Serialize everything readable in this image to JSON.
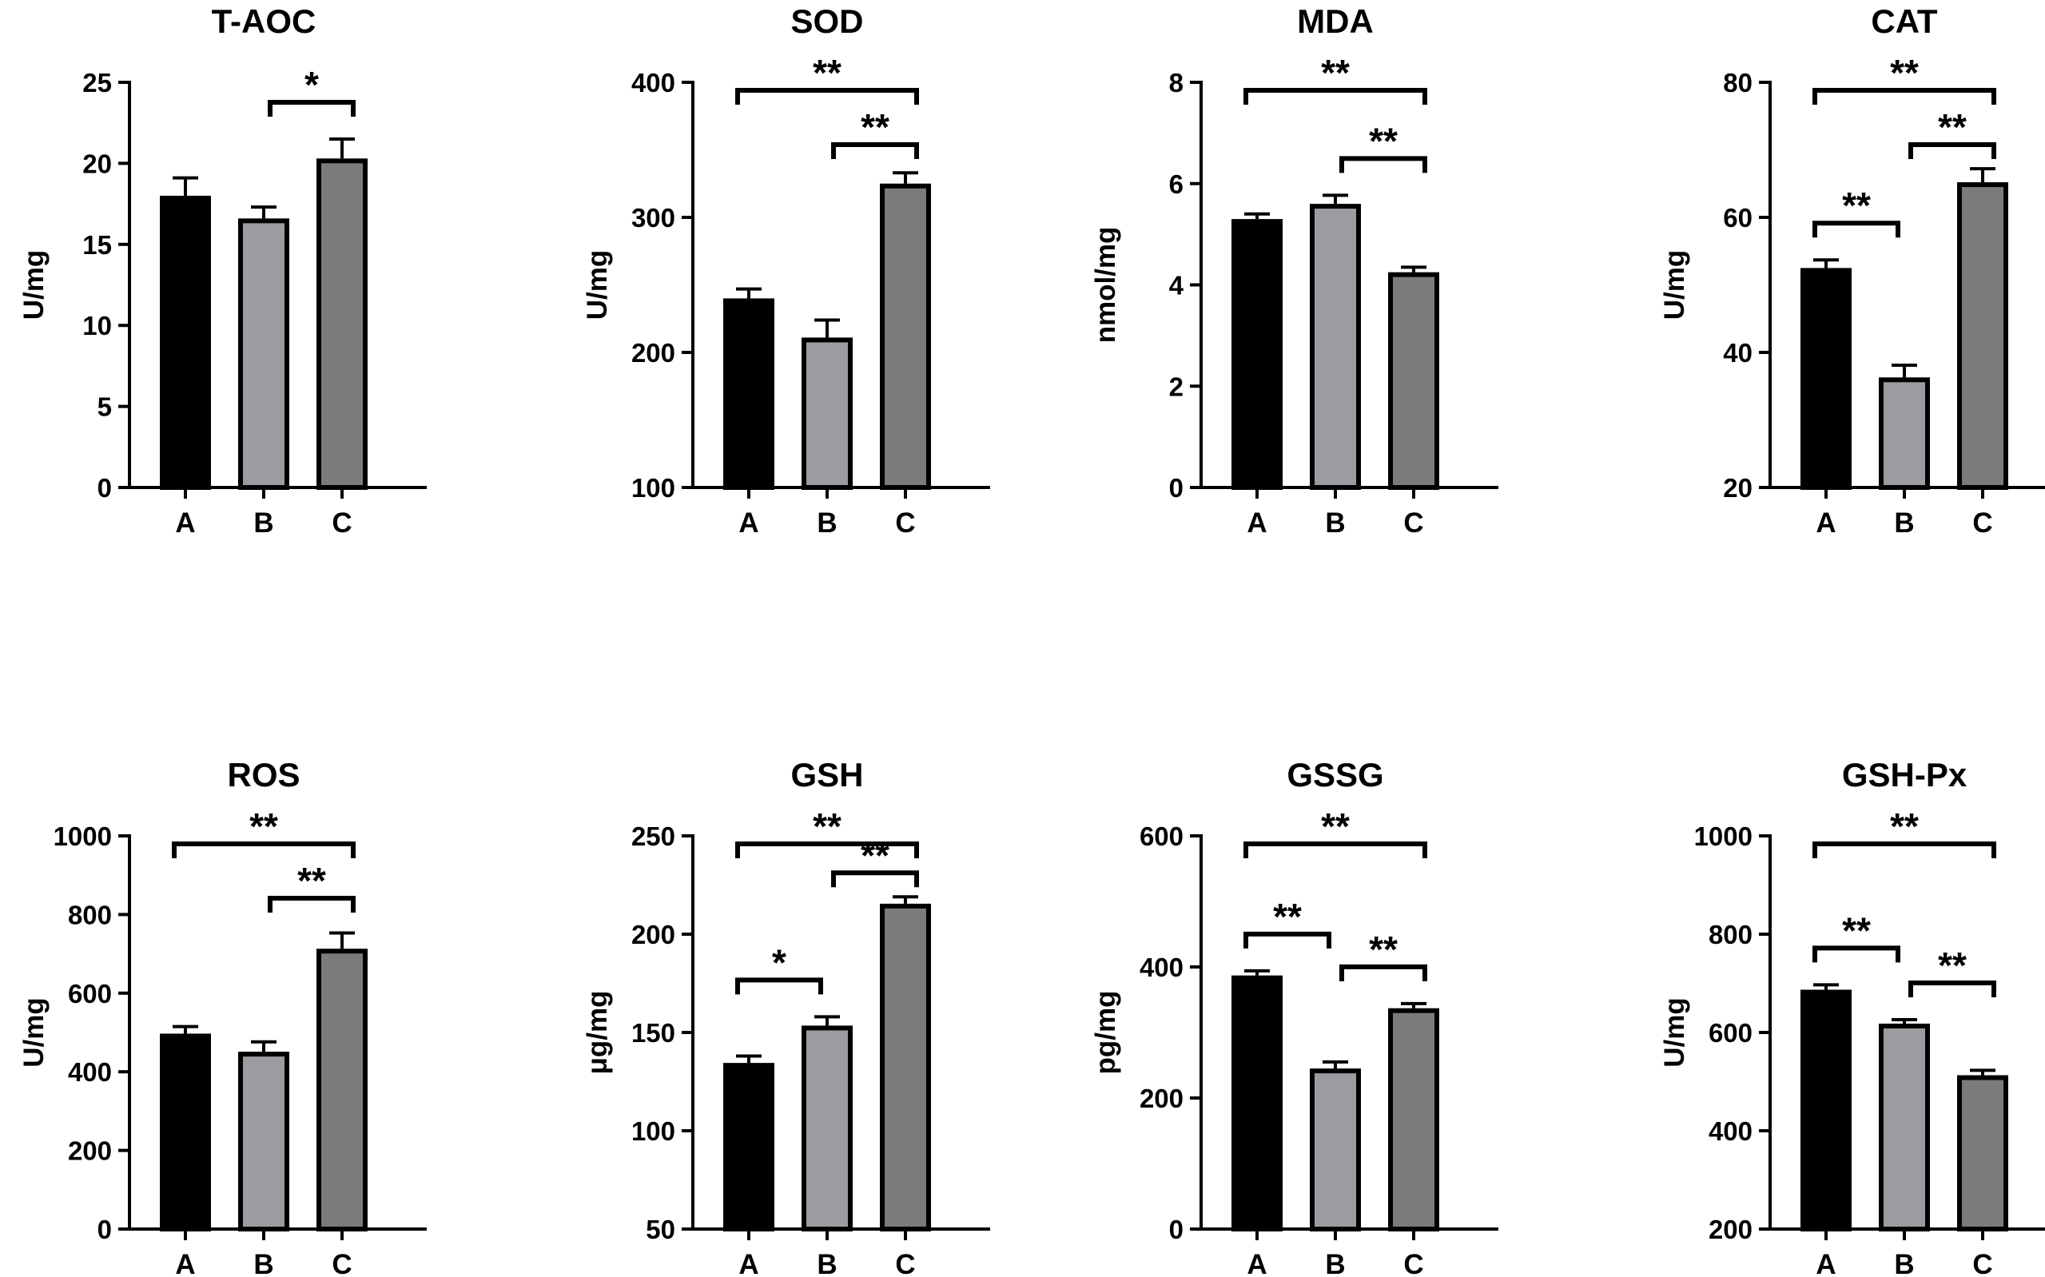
{
  "colors": {
    "A": "#000000",
    "B": "#9c9ca0",
    "C": "#7b7b7b",
    "axis": "#000000"
  },
  "chart_data": [
    {
      "type": "bar",
      "title": "T-AOC",
      "ylabel": "U/mg",
      "categories": [
        "A",
        "B",
        "C"
      ],
      "values": [
        18.0,
        16.6,
        20.3
      ],
      "errors": [
        1.1,
        0.7,
        1.2
      ],
      "ylim": [
        0,
        25
      ],
      "yticks": [
        0,
        5,
        10,
        15,
        20,
        25
      ],
      "significance": [
        {
          "from": "B",
          "to": "C",
          "label": "*"
        }
      ]
    },
    {
      "type": "bar",
      "title": "SOD",
      "ylabel": "U/mg",
      "categories": [
        "A",
        "B",
        "C"
      ],
      "values": [
        240,
        211,
        325
      ],
      "errors": [
        7,
        13,
        8
      ],
      "ylim": [
        100,
        400
      ],
      "yticks": [
        100,
        200,
        300,
        400
      ],
      "significance": [
        {
          "from": "A",
          "to": "C",
          "label": "**"
        },
        {
          "from": "B",
          "to": "C",
          "label": "**"
        }
      ]
    },
    {
      "type": "bar",
      "title": "MDA",
      "ylabel": "nmol/mg",
      "categories": [
        "A",
        "B",
        "C"
      ],
      "values": [
        5.3,
        5.6,
        4.25
      ],
      "errors": [
        0.1,
        0.17,
        0.1
      ],
      "ylim": [
        0,
        8
      ],
      "yticks": [
        0,
        2,
        4,
        6,
        8
      ],
      "significance": [
        {
          "from": "A",
          "to": "C",
          "label": "**"
        },
        {
          "from": "B",
          "to": "C",
          "label": "**"
        }
      ]
    },
    {
      "type": "bar",
      "title": "CAT",
      "ylabel": "U/mg",
      "categories": [
        "A",
        "B",
        "C"
      ],
      "values": [
        52.5,
        36.3,
        65.2
      ],
      "errors": [
        1.2,
        1.8,
        2.0
      ],
      "ylim": [
        20,
        80
      ],
      "yticks": [
        20,
        40,
        60,
        80
      ],
      "significance": [
        {
          "from": "A",
          "to": "C",
          "label": "**"
        },
        {
          "from": "B",
          "to": "C",
          "label": "**"
        },
        {
          "from": "A",
          "to": "B",
          "label": "**"
        }
      ]
    },
    {
      "type": "bar",
      "title": "ROS",
      "ylabel": "U/mg",
      "categories": [
        "A",
        "B",
        "C"
      ],
      "values": [
        497,
        451,
        713
      ],
      "errors": [
        18,
        25,
        40
      ],
      "ylim": [
        0,
        1000
      ],
      "yticks": [
        0,
        200,
        400,
        600,
        800,
        1000
      ],
      "significance": [
        {
          "from": "A",
          "to": "C",
          "label": "**"
        },
        {
          "from": "B",
          "to": "C",
          "label": "**"
        }
      ]
    },
    {
      "type": "bar",
      "title": "GSH",
      "ylabel": "μg/mg",
      "categories": [
        "A",
        "B",
        "C"
      ],
      "values": [
        134.5,
        153.5,
        215.5
      ],
      "errors": [
        3.5,
        4.5,
        3.5
      ],
      "ylim": [
        50,
        250
      ],
      "yticks": [
        50,
        100,
        150,
        200,
        250
      ],
      "significance": [
        {
          "from": "A",
          "to": "C",
          "label": "**"
        },
        {
          "from": "B",
          "to": "C",
          "label": "**"
        },
        {
          "from": "A",
          "to": "B",
          "label": "*"
        }
      ]
    },
    {
      "type": "bar",
      "title": "GSSG",
      "ylabel": "pg/mg",
      "categories": [
        "A",
        "B",
        "C"
      ],
      "values": [
        387,
        245,
        337
      ],
      "errors": [
        7,
        10,
        7
      ],
      "ylim": [
        0,
        600
      ],
      "yticks": [
        0,
        200,
        400,
        600
      ],
      "significance": [
        {
          "from": "A",
          "to": "C",
          "label": "**"
        },
        {
          "from": "A",
          "to": "B",
          "label": "**"
        },
        {
          "from": "B",
          "to": "C",
          "label": "**"
        }
      ]
    },
    {
      "type": "bar",
      "title": "GSH-Px",
      "ylabel": "U/mg",
      "categories": [
        "A",
        "B",
        "C"
      ],
      "values": [
        687,
        618,
        513
      ],
      "errors": [
        10,
        8,
        10
      ],
      "ylim": [
        200,
        1000
      ],
      "yticks": [
        200,
        400,
        600,
        800,
        1000
      ],
      "significance": [
        {
          "from": "A",
          "to": "C",
          "label": "**"
        },
        {
          "from": "A",
          "to": "B",
          "label": "**"
        },
        {
          "from": "B",
          "to": "C",
          "label": "**"
        }
      ]
    }
  ]
}
